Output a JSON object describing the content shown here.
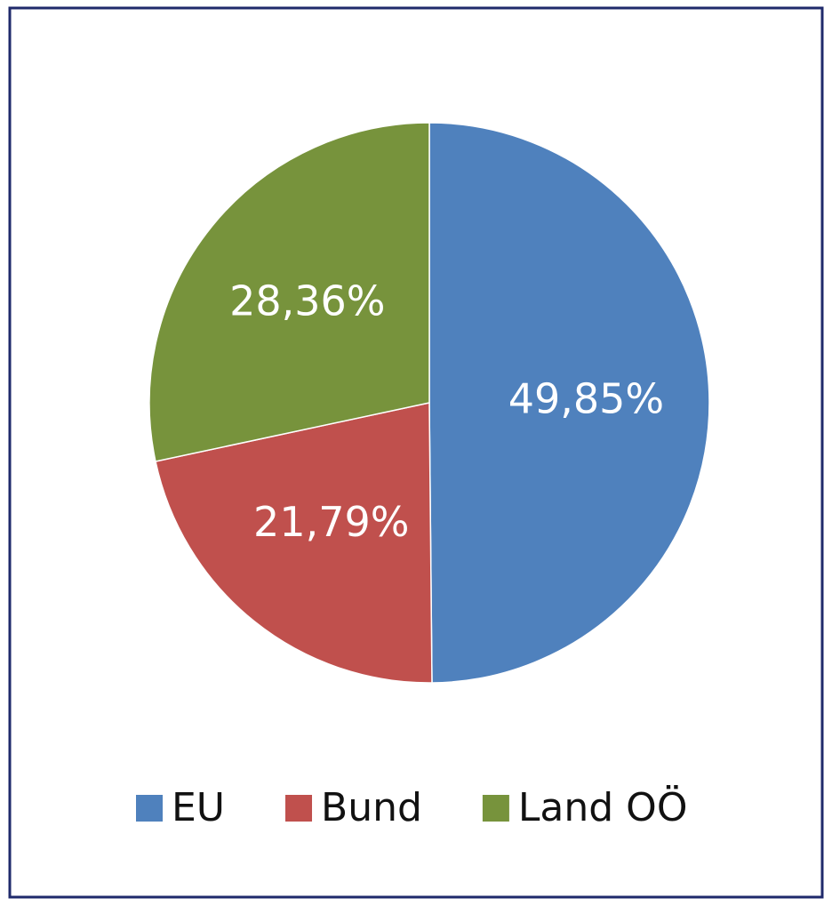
{
  "chart_data": {
    "type": "pie",
    "categories": [
      "EU",
      "Bund",
      "Land OÖ"
    ],
    "values": [
      49.85,
      21.79,
      28.36
    ],
    "value_labels": [
      "49,85%",
      "21,79%",
      "28,36%"
    ],
    "colors": [
      "#4f81bd",
      "#c0504d",
      "#77933c"
    ],
    "legend": "bottom"
  }
}
